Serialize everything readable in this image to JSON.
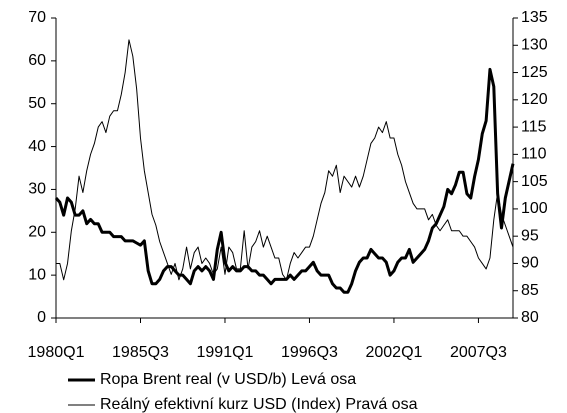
{
  "chart_data": {
    "type": "line",
    "categories": [
      "1980Q1",
      null,
      null,
      null,
      null,
      null,
      null,
      null,
      null,
      null,
      null,
      null,
      null,
      null,
      null,
      null,
      null,
      null,
      null,
      null,
      null,
      null,
      "1985Q3",
      null,
      null,
      null,
      null,
      null,
      null,
      null,
      null,
      null,
      null,
      null,
      null,
      null,
      null,
      null,
      null,
      null,
      null,
      null,
      null,
      null,
      "1991Q1",
      null,
      null,
      null,
      null,
      null,
      null,
      null,
      null,
      null,
      null,
      null,
      null,
      null,
      null,
      null,
      null,
      null,
      null,
      null,
      null,
      null,
      "1996Q3",
      null,
      null,
      null,
      null,
      null,
      null,
      null,
      null,
      null,
      null,
      null,
      null,
      null,
      null,
      null,
      null,
      null,
      null,
      null,
      null,
      null,
      "2002Q1",
      null,
      null,
      null,
      null,
      null,
      null,
      null,
      null,
      null,
      null,
      null,
      null,
      null,
      null,
      null,
      null,
      null,
      null,
      null,
      null,
      null,
      "2007Q3",
      null,
      null,
      null,
      null,
      null,
      null,
      null,
      null,
      null
    ],
    "series": [
      {
        "name": "Ropa Brent real (v USD/b) Levá osa",
        "color": "#000000",
        "axis": "y",
        "values": [
          28,
          27,
          24,
          28,
          27,
          24,
          24,
          25,
          22,
          23,
          22,
          22,
          20,
          20,
          20,
          19,
          19,
          19,
          18,
          18,
          18,
          17.5,
          17,
          18,
          11,
          8,
          8,
          9,
          11,
          12,
          12,
          11,
          10,
          10,
          9,
          8,
          11,
          12,
          11,
          12,
          11,
          9,
          16,
          20,
          13,
          11,
          12,
          11,
          11,
          12,
          12,
          11,
          11,
          10,
          10,
          9,
          8,
          9,
          9,
          9,
          9,
          10,
          9,
          10,
          11,
          11,
          12,
          13,
          11,
          10,
          10,
          10,
          8,
          7,
          7,
          6,
          6,
          8,
          11,
          13,
          14,
          14,
          16,
          15,
          14,
          14,
          13,
          10,
          11,
          13,
          14,
          14,
          16,
          13,
          14,
          15,
          16,
          18,
          21,
          22,
          24,
          26,
          30,
          29,
          31,
          34,
          34,
          29,
          28,
          33,
          37,
          43,
          46,
          58,
          54,
          29,
          21,
          28,
          32,
          36
        ]
      },
      {
        "name": "Reálný efektivní kurz USD (Index) Pravá osa",
        "color": "#000000",
        "axis": "y2",
        "values": [
          90,
          90,
          87,
          90,
          96,
          100,
          106,
          103,
          107,
          110,
          112,
          115,
          116,
          114,
          117,
          118,
          118,
          121,
          125,
          131,
          128,
          122,
          113,
          107,
          103,
          99,
          97,
          94,
          92,
          90,
          88,
          90,
          87,
          89,
          93,
          89,
          92,
          93,
          90,
          91,
          90,
          88,
          89,
          93,
          88,
          93,
          92,
          89,
          89,
          96,
          89,
          93,
          94,
          96,
          93,
          95,
          93,
          91,
          91,
          88,
          87,
          90,
          92,
          91,
          92,
          93,
          93,
          95,
          98,
          101,
          103,
          107,
          106,
          108,
          103,
          106,
          105,
          104,
          106,
          104,
          106,
          109,
          112,
          113,
          115,
          114,
          116,
          113,
          113,
          110,
          108,
          105,
          103,
          101,
          100,
          100,
          100,
          98,
          99,
          97,
          96,
          97,
          98,
          96,
          96,
          96,
          95,
          95,
          94,
          93,
          91,
          90,
          89,
          91,
          98,
          103,
          99,
          97,
          95,
          93
        ]
      }
    ],
    "ylim": [
      0,
      70
    ],
    "yticks": [
      0,
      10,
      20,
      30,
      40,
      50,
      60,
      70
    ],
    "y2lim": [
      80,
      135
    ],
    "y2ticks": [
      80,
      85,
      90,
      95,
      100,
      105,
      110,
      115,
      120,
      125,
      130,
      135
    ]
  }
}
